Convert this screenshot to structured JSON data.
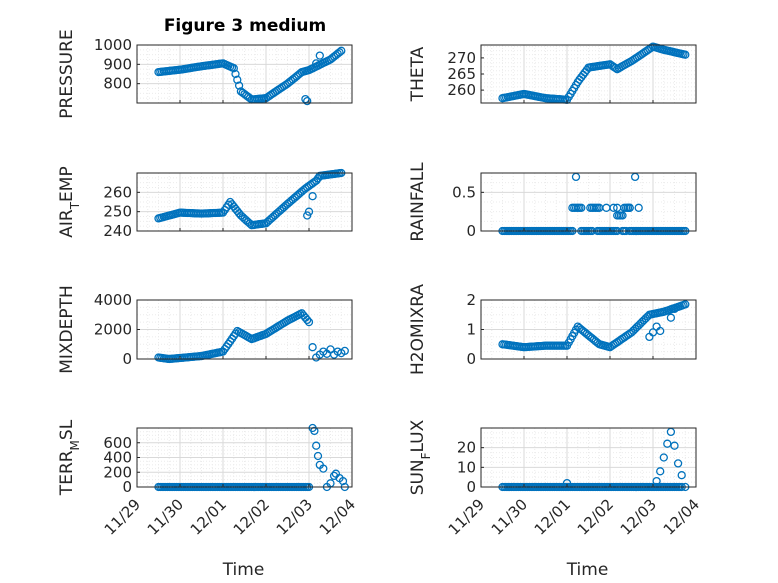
{
  "figure_title": "Figure 3 medium",
  "colors": {
    "marker": "#0072BD",
    "grid": "#dcdcdc",
    "axis": "#262626"
  },
  "chart_data": [
    {
      "id": "pressure",
      "type": "scatter",
      "ylabel": "PRESSURE",
      "xlabel": "",
      "x_range": [
        "11/29",
        "12/04"
      ],
      "ylim": [
        700,
        1000
      ],
      "yticks": [
        800,
        900,
        1000
      ],
      "xtick_labels": [],
      "grid": true,
      "anchors": [
        [
          "11/29 12:00",
          860
        ],
        [
          "11/30 00:00",
          872
        ],
        [
          "11/30 12:00",
          890
        ],
        [
          "12/01 00:00",
          905
        ],
        [
          "12/01 06:00",
          880
        ],
        [
          "12/01 10:00",
          760
        ],
        [
          "12/01 16:00",
          718
        ],
        [
          "12/02 00:00",
          725
        ],
        [
          "12/02 12:00",
          800
        ],
        [
          "12/02 20:00",
          860
        ],
        [
          "12/03 00:00",
          870
        ],
        [
          "12/03 12:00",
          925
        ],
        [
          "12/03 18:00",
          970
        ]
      ],
      "extra_points": [
        [
          "12/02 22:00",
          720
        ],
        [
          "12/02 23:00",
          710
        ],
        [
          "12/03 06:00",
          945
        ],
        [
          "12/03 04:00",
          905
        ]
      ]
    },
    {
      "id": "theta",
      "type": "scatter",
      "ylabel": "THETA",
      "xlabel": "",
      "x_range": [
        "11/29",
        "12/04"
      ],
      "ylim": [
        256,
        274
      ],
      "yticks": [
        260,
        265,
        270
      ],
      "xtick_labels": [],
      "grid": true,
      "anchors": [
        [
          "11/29 12:00",
          257.5
        ],
        [
          "11/30 00:00",
          258.8
        ],
        [
          "11/30 12:00",
          257.5
        ],
        [
          "12/01 00:00",
          257.0
        ],
        [
          "12/01 06:00",
          262.5
        ],
        [
          "12/01 12:00",
          267.0
        ],
        [
          "12/02 00:00",
          268.0
        ],
        [
          "12/02 04:00",
          266.5
        ],
        [
          "12/02 12:00",
          269.0
        ],
        [
          "12/03 00:00",
          273.5
        ],
        [
          "12/03 06:00",
          272.5
        ],
        [
          "12/03 18:00",
          271.0
        ]
      ],
      "extra_points": []
    },
    {
      "id": "air-temp",
      "type": "scatter",
      "ylabel": "AIR_TEMP",
      "xlabel": "",
      "x_range": [
        "11/29",
        "12/04"
      ],
      "ylim": [
        240,
        270
      ],
      "yticks": [
        240,
        250,
        260
      ],
      "xtick_labels": [],
      "grid": true,
      "anchors": [
        [
          "11/29 12:00",
          246.5
        ],
        [
          "11/30 00:00",
          249.5
        ],
        [
          "11/30 12:00",
          249.0
        ],
        [
          "12/01 00:00",
          249.5
        ],
        [
          "12/01 04:00",
          255.0
        ],
        [
          "12/01 10:00",
          248.0
        ],
        [
          "12/01 16:00",
          243.0
        ],
        [
          "12/02 00:00",
          244.0
        ],
        [
          "12/02 12:00",
          254.0
        ],
        [
          "12/02 22:00",
          262.0
        ],
        [
          "12/03 04:00",
          266.0
        ],
        [
          "12/03 06:00",
          268.5
        ],
        [
          "12/03 18:00",
          270.0
        ]
      ],
      "extra_points": [
        [
          "12/02 23:00",
          248.0
        ],
        [
          "12/03 00:00",
          250.0
        ],
        [
          "12/03 02:00",
          258.0
        ]
      ]
    },
    {
      "id": "rainfall",
      "type": "scatter",
      "ylabel": "RAINFALL",
      "xlabel": "",
      "x_range": [
        "11/29",
        "12/04"
      ],
      "ylim": [
        0,
        0.75
      ],
      "yticks": [
        0,
        0.5
      ],
      "xtick_labels": [],
      "grid": true,
      "segments": [
        {
          "from": "11/29 12:00",
          "to": "12/01 03:00",
          "value": 0,
          "step_hours": 1
        },
        {
          "from": "12/01 03:00",
          "to": "12/01 08:00",
          "value": 0.3,
          "step_hours": 1
        },
        {
          "from": "12/01 08:00",
          "to": "12/01 14:00",
          "value": 0,
          "step_hours": 1
        },
        {
          "from": "12/01 14:00",
          "to": "12/01 17:00",
          "value": 0.3,
          "step_hours": 1
        },
        {
          "from": "12/01 17:00",
          "to": "12/02 04:00",
          "value": 0,
          "step_hours": 1
        },
        {
          "from": "12/02 04:00",
          "to": "12/02 07:00",
          "value": 0.2,
          "step_hours": 1
        },
        {
          "from": "12/02 07:00",
          "to": "12/02 09:00",
          "value": 0,
          "step_hours": 1
        },
        {
          "from": "12/02 09:00",
          "to": "12/02 11:00",
          "value": 0.3,
          "step_hours": 1
        },
        {
          "from": "12/02 11:00",
          "to": "12/03 18:00",
          "value": 0,
          "step_hours": 1
        }
      ],
      "extra_points": [
        [
          "12/01 05:00",
          0.7
        ],
        [
          "12/01 13:00",
          0.3
        ],
        [
          "12/01 18:00",
          0.3
        ],
        [
          "12/01 22:00",
          0.3
        ],
        [
          "12/02 02:00",
          0.3
        ],
        [
          "12/02 04:00",
          0.3
        ],
        [
          "12/02 08:00",
          0.3
        ],
        [
          "12/02 10:00",
          0.3
        ],
        [
          "12/02 11:00",
          0.3
        ],
        [
          "12/02 14:00",
          0.7
        ],
        [
          "12/02 16:00",
          0.3
        ]
      ]
    },
    {
      "id": "mixdepth",
      "type": "scatter",
      "ylabel": "MIXDEPTH",
      "xlabel": "",
      "x_range": [
        "11/29",
        "12/04"
      ],
      "ylim": [
        0,
        4000
      ],
      "yticks": [
        0,
        2000,
        4000
      ],
      "xtick_labels": [],
      "grid": true,
      "anchors": [
        [
          "11/29 12:00",
          100
        ],
        [
          "11/29 18:00",
          0
        ],
        [
          "11/30 12:00",
          200
        ],
        [
          "12/01 00:00",
          500
        ],
        [
          "12/01 08:00",
          1900
        ],
        [
          "12/01 16:00",
          1350
        ],
        [
          "12/02 00:00",
          1700
        ],
        [
          "12/02 12:00",
          2600
        ],
        [
          "12/02 20:00",
          3100
        ],
        [
          "12/03 00:00",
          2500
        ]
      ],
      "extra_points": [
        [
          "12/03 02:00",
          800
        ],
        [
          "12/03 04:00",
          100
        ],
        [
          "12/03 06:00",
          300
        ],
        [
          "12/03 08:00",
          500
        ],
        [
          "12/03 10:00",
          350
        ],
        [
          "12/03 12:00",
          650
        ],
        [
          "12/03 14:00",
          300
        ],
        [
          "12/03 16:00",
          500
        ],
        [
          "12/03 18:00",
          400
        ],
        [
          "12/03 20:00",
          550
        ]
      ]
    },
    {
      "id": "h2omixra",
      "type": "scatter",
      "ylabel": "H2OMIXRA",
      "xlabel": "",
      "x_range": [
        "11/29",
        "12/04"
      ],
      "ylim": [
        0,
        2
      ],
      "yticks": [
        0,
        1,
        2
      ],
      "xtick_labels": [],
      "grid": true,
      "anchors": [
        [
          "11/29 12:00",
          0.5
        ],
        [
          "11/30 00:00",
          0.4
        ],
        [
          "11/30 12:00",
          0.45
        ],
        [
          "12/01 00:00",
          0.45
        ],
        [
          "12/01 06:00",
          1.1
        ],
        [
          "12/01 18:00",
          0.5
        ],
        [
          "12/02 00:00",
          0.4
        ],
        [
          "12/02 12:00",
          0.9
        ],
        [
          "12/02 22:00",
          1.5
        ],
        [
          "12/03 06:00",
          1.6
        ],
        [
          "12/03 18:00",
          1.85
        ]
      ],
      "extra_points": [
        [
          "12/02 22:00",
          0.75
        ],
        [
          "12/03 00:00",
          0.9
        ],
        [
          "12/03 02:00",
          1.1
        ],
        [
          "12/03 04:00",
          0.95
        ],
        [
          "12/03 10:00",
          1.4
        ],
        [
          "12/03 12:00",
          1.7
        ]
      ]
    },
    {
      "id": "terr-msl",
      "type": "scatter",
      "ylabel": "TERR_MSL",
      "xlabel": "Time",
      "x_range": [
        "11/29",
        "12/04"
      ],
      "ylim": [
        0,
        800
      ],
      "yticks": [
        0,
        200,
        400,
        600
      ],
      "xtick_labels": [
        "11/29",
        "11/30",
        "12/01",
        "12/02",
        "12/03",
        "12/04"
      ],
      "grid": true,
      "segments": [
        {
          "from": "11/29 12:00",
          "to": "12/03 00:00",
          "value": 0,
          "step_hours": 1
        }
      ],
      "extra_points": [
        [
          "12/03 02:00",
          800
        ],
        [
          "12/03 03:00",
          760
        ],
        [
          "12/03 04:00",
          560
        ],
        [
          "12/03 05:00",
          420
        ],
        [
          "12/03 06:00",
          300
        ],
        [
          "12/03 08:00",
          250
        ],
        [
          "12/03 10:00",
          0
        ],
        [
          "12/03 12:00",
          50
        ],
        [
          "12/03 14:00",
          150
        ],
        [
          "12/03 15:00",
          180
        ],
        [
          "12/03 17:00",
          120
        ],
        [
          "12/03 19:00",
          80
        ],
        [
          "12/03 20:00",
          0
        ]
      ]
    },
    {
      "id": "sun-flux",
      "type": "scatter",
      "ylabel": "SUN_FLUX",
      "xlabel": "Time",
      "x_range": [
        "11/29",
        "12/04"
      ],
      "ylim": [
        0,
        30
      ],
      "yticks": [
        0,
        10,
        20
      ],
      "xtick_labels": [
        "11/29",
        "11/30",
        "12/01",
        "12/02",
        "12/03",
        "12/04"
      ],
      "grid": true,
      "segments": [
        {
          "from": "11/29 12:00",
          "to": "12/03 16:00",
          "value": 0,
          "step_hours": 1
        }
      ],
      "extra_points": [
        [
          "12/01 00:00",
          2
        ],
        [
          "12/03 02:00",
          3
        ],
        [
          "12/03 04:00",
          8
        ],
        [
          "12/03 06:00",
          15
        ],
        [
          "12/03 08:00",
          22
        ],
        [
          "12/03 10:00",
          28
        ],
        [
          "12/03 12:00",
          21
        ],
        [
          "12/03 14:00",
          12
        ],
        [
          "12/03 16:00",
          6
        ],
        [
          "12/03 18:00",
          0
        ]
      ]
    }
  ]
}
